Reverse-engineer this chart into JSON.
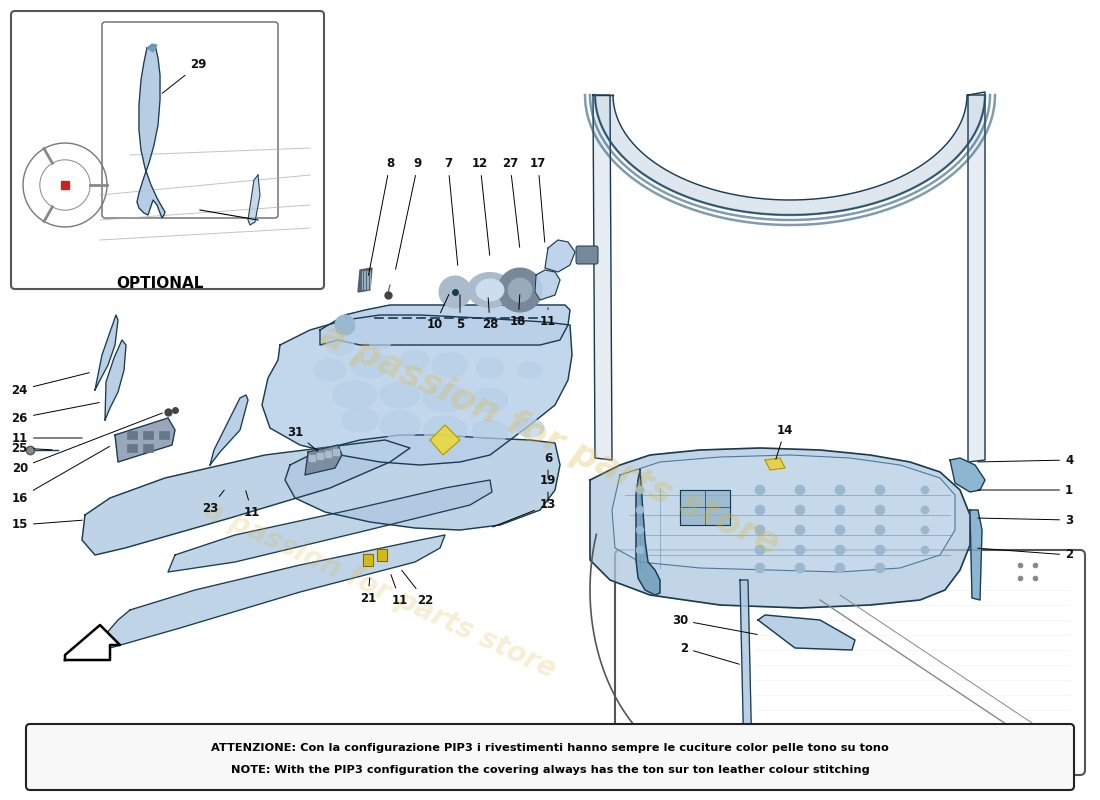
{
  "bg_color": "#ffffff",
  "note_line1": "ATTENZIONE: Con la configurazione PIP3 i rivestimenti hanno sempre le cuciture color pelle tono su tono",
  "note_line2": "NOTE: With the PIP3 configuration the covering always has the ton sur ton leather colour stitching",
  "watermark": "a passion for parts store",
  "optional_label": "OPTIONAL",
  "door_color": "#aec8e0",
  "door_color2": "#c8ddf0",
  "door_dark": "#6a9ab8",
  "panel_color": "#b8d0e8",
  "strip_blue": "#7aaac8",
  "line_color": "#1a3a50",
  "note_box_color": "#f8f8f8",
  "note_border_color": "#222222",
  "label_color": "#111111"
}
